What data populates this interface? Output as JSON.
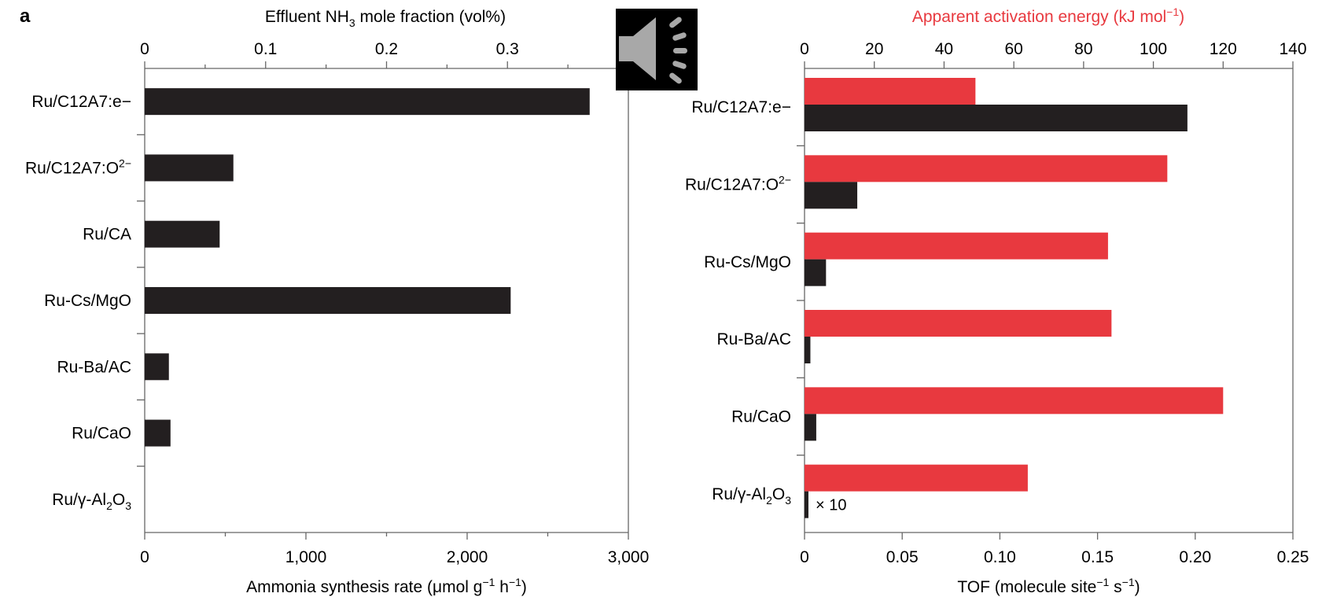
{
  "figure": {
    "panel_label": "a"
  },
  "speaker_overlay": {
    "icon": "speaker-icon",
    "bg": "#000000",
    "fg": "#a8a8a8"
  },
  "colors": {
    "black": "#231f20",
    "red": "#e8393f",
    "axis": "#666666"
  },
  "chart_data": [
    {
      "type": "bar",
      "orientation": "horizontal",
      "categories": [
        "Ru/C12A7:e−",
        "Ru/C12A7:O2−",
        "Ru/CA",
        "Ru-Cs/MgO",
        "Ru-Ba/AC",
        "Ru/CaO",
        "Ru/γ-Al2O3"
      ],
      "category_labels": [
        {
          "parts": [
            {
              "t": "Ru/C12A7:e−"
            }
          ]
        },
        {
          "parts": [
            {
              "t": "Ru/C12A7:O"
            },
            {
              "t": "2−",
              "sup": true
            }
          ]
        },
        {
          "parts": [
            {
              "t": "Ru/CA"
            }
          ]
        },
        {
          "parts": [
            {
              "t": "Ru-Cs/MgO"
            }
          ]
        },
        {
          "parts": [
            {
              "t": "Ru-Ba/AC"
            }
          ]
        },
        {
          "parts": [
            {
              "t": "Ru/CaO"
            }
          ]
        },
        {
          "parts": [
            {
              "t": "Ru/γ-Al"
            },
            {
              "t": "2",
              "sub": true
            },
            {
              "t": "O"
            },
            {
              "t": "3",
              "sub": true
            }
          ]
        }
      ],
      "series": [
        {
          "values": [
            2760,
            550,
            465,
            2270,
            150,
            160,
            0
          ]
        }
      ],
      "xlabel_parts": [
        {
          "t": "Ammonia synthesis rate ("
        },
        {
          "t": "μmol g"
        },
        {
          "t": "−1",
          "sup": true
        },
        {
          "t": " h"
        },
        {
          "t": "−1",
          "sup": true
        },
        {
          "t": ")"
        }
      ],
      "xlim": [
        0,
        3000
      ],
      "xticks": [
        0,
        1000,
        2000,
        3000
      ],
      "xtick_labels": [
        "0",
        "1,000",
        "2,000",
        "3,000"
      ],
      "top_axis": {
        "label_parts": [
          {
            "t": "Effluent NH"
          },
          {
            "t": "3",
            "sub": true
          },
          {
            "t": " mole fraction (vol%)"
          }
        ],
        "xlim": [
          0,
          0.4
        ],
        "ticks": [
          0,
          0.1,
          0.2,
          0.3
        ],
        "tick_labels": [
          "0",
          "0.1",
          "0.2",
          "0.3"
        ]
      },
      "grid": false
    },
    {
      "type": "bar",
      "orientation": "horizontal",
      "categories": [
        "Ru/C12A7:e−",
        "Ru/C12A7:O2−",
        "Ru-Cs/MgO",
        "Ru-Ba/AC",
        "Ru/CaO",
        "Ru/γ-Al2O3"
      ],
      "category_labels": [
        {
          "parts": [
            {
              "t": "Ru/C12A7:e−"
            }
          ]
        },
        {
          "parts": [
            {
              "t": "Ru/C12A7:O"
            },
            {
              "t": "2−",
              "sup": true
            }
          ]
        },
        {
          "parts": [
            {
              "t": "Ru-Cs/MgO"
            }
          ]
        },
        {
          "parts": [
            {
              "t": "Ru-Ba/AC"
            }
          ]
        },
        {
          "parts": [
            {
              "t": "Ru/CaO"
            }
          ]
        },
        {
          "parts": [
            {
              "t": "Ru/γ-Al"
            },
            {
              "t": "2",
              "sub": true
            },
            {
              "t": "O"
            },
            {
              "t": "3",
              "sub": true
            }
          ]
        }
      ],
      "series": [
        {
          "axis": "top",
          "color": "#e8393f",
          "values": [
            49,
            104,
            87,
            88,
            120,
            64
          ]
        },
        {
          "axis": "bottom",
          "color": "#231f20",
          "values": [
            0.196,
            0.027,
            0.011,
            0.003,
            0.006,
            0.002
          ]
        }
      ],
      "xlabel_parts": [
        {
          "t": "TOF (molecule site"
        },
        {
          "t": "−1",
          "sup": true
        },
        {
          "t": " s"
        },
        {
          "t": "−1",
          "sup": true
        },
        {
          "t": ")"
        }
      ],
      "xlim": [
        0,
        0.25
      ],
      "xticks": [
        0,
        0.05,
        0.1,
        0.15,
        0.2,
        0.25
      ],
      "xtick_labels": [
        "0",
        "0.05",
        "0.10",
        "0.15",
        "0.20",
        "0.25"
      ],
      "top_axis": {
        "label_parts": [
          {
            "t": "Apparent activation energy (kJ mol"
          },
          {
            "t": "−1",
            "sup": true
          },
          {
            "t": ")"
          }
        ],
        "label_color": "#e8393f",
        "xlim": [
          0,
          140
        ],
        "ticks": [
          0,
          20,
          40,
          60,
          80,
          100,
          120,
          140
        ],
        "tick_labels": [
          "0",
          "20",
          "40",
          "60",
          "80",
          "100",
          "120",
          "140"
        ]
      },
      "annotation": {
        "text": "× 10",
        "category": "Ru/γ-Al2O3"
      },
      "grid": false
    }
  ]
}
